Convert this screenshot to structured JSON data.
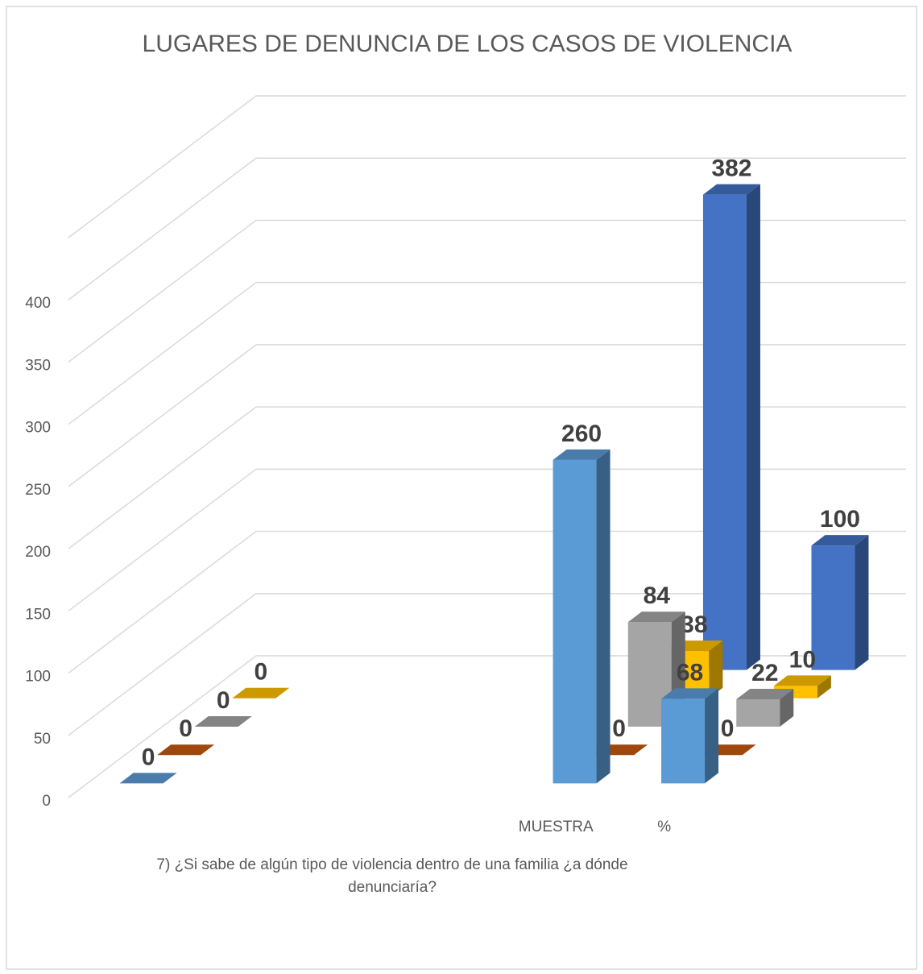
{
  "chart_data": {
    "type": "bar3d",
    "title": "LUGARES DE DENUNCIA DE LOS CASOS DE VIOLENCIA",
    "x_label": "7) ¿Si sabe de algún tipo de violencia dentro de una familia ¿a dónde denunciaría?",
    "categories": [
      null,
      null,
      null,
      null,
      "MUESTRA",
      "%"
    ],
    "series": [
      {
        "color": "#5b9bd5",
        "values": [
          0,
          null,
          null,
          null,
          260,
          68
        ]
      },
      {
        "color": "#c55a11",
        "values": [
          0,
          null,
          null,
          null,
          0,
          0
        ]
      },
      {
        "color": "#a5a5a5",
        "values": [
          0,
          null,
          null,
          null,
          84,
          22
        ]
      },
      {
        "color": "#ffc000",
        "values": [
          0,
          null,
          null,
          null,
          38,
          10
        ]
      },
      {
        "color": "#4472c4",
        "values": [
          null,
          null,
          null,
          null,
          382,
          100
        ]
      }
    ],
    "ylim": [
      0,
      450
    ],
    "yticks": [
      0,
      50,
      100,
      150,
      200,
      250,
      300,
      350,
      400
    ],
    "grid": true
  }
}
